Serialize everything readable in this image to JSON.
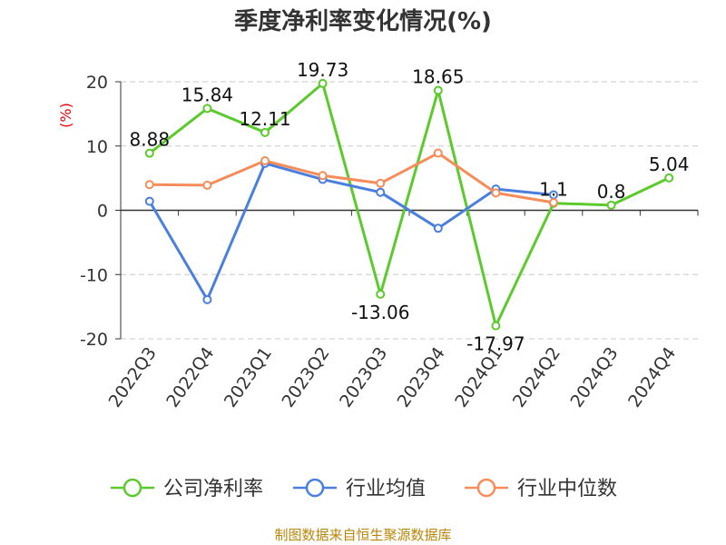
{
  "chart_data": {
    "type": "line",
    "title": "季度净利率变化情况(%)",
    "ylabel": "(%)",
    "categories": [
      "2022Q3",
      "2022Q4",
      "2023Q1",
      "2023Q2",
      "2023Q3",
      "2023Q4",
      "2024Q1",
      "2024Q2",
      "2024Q3",
      "2024Q4"
    ],
    "ylim": [
      -20,
      20
    ],
    "yticks": [
      20,
      10,
      0,
      -10,
      -20
    ],
    "grid": true,
    "legend_position": "bottom",
    "series": [
      {
        "name": "公司净利率",
        "color": "#5cc92d",
        "values": [
          8.88,
          15.84,
          12.11,
          19.73,
          -13.06,
          18.65,
          -17.97,
          1.1,
          0.8,
          5.04
        ],
        "labels": [
          "8.88",
          "15.84",
          "12.11",
          "19.73",
          "-13.06",
          "18.65",
          "-17.97",
          "1.1",
          "0.8",
          "5.04"
        ]
      },
      {
        "name": "行业均值",
        "color": "#4a7fde",
        "values": [
          1.4,
          -13.9,
          7.3,
          4.8,
          2.8,
          -2.8,
          3.3,
          2.4,
          null,
          null
        ]
      },
      {
        "name": "行业中位数",
        "color": "#f58d5b",
        "values": [
          4.0,
          3.9,
          7.7,
          5.4,
          4.2,
          8.9,
          2.7,
          1.2,
          null,
          null
        ]
      }
    ]
  },
  "source": "制图数据来自恒生聚源数据库"
}
